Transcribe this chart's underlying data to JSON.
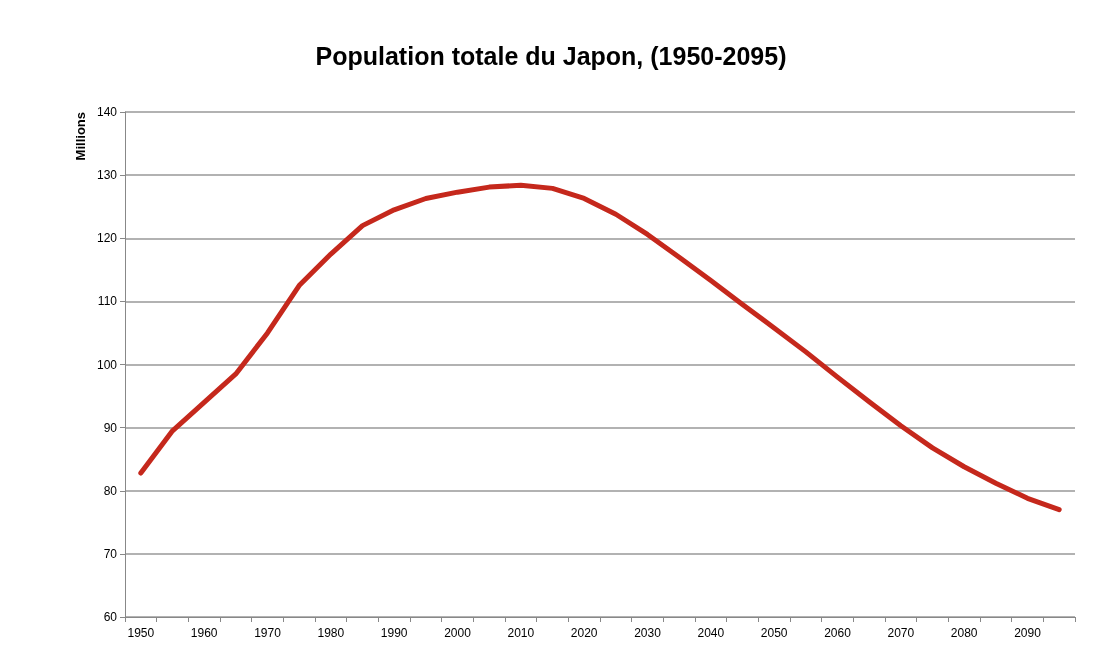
{
  "chart_data": {
    "type": "line",
    "title": "Population totale du Japon, (1950-2095)",
    "ylabel": "Millions",
    "categories": [
      "1950",
      null,
      "1960",
      null,
      "1970",
      null,
      "1980",
      null,
      "1990",
      null,
      "2000",
      null,
      "2010",
      null,
      "2020",
      null,
      "2030",
      null,
      "2040",
      null,
      "2050",
      null,
      "2060",
      null,
      "2070",
      null,
      "2080",
      null,
      "2090",
      null
    ],
    "series": [
      {
        "color": "#c5281c",
        "values": [
          82.8,
          89.5,
          94,
          98.5,
          105,
          112.5,
          117.5,
          122,
          124.5,
          126.3,
          127.3,
          128.1,
          128.4,
          127.9,
          126.3,
          123.8,
          120.6,
          117,
          113.3,
          109.5,
          105.8,
          102,
          98,
          94.1,
          90.3,
          86.8,
          83.8,
          81.2,
          78.8,
          77
        ]
      }
    ],
    "ylim": [
      60,
      140
    ],
    "yticks": [
      60,
      70,
      80,
      90,
      100,
      110,
      120,
      130,
      140
    ],
    "grid": "y",
    "marker": "none",
    "line_style": "solid"
  }
}
